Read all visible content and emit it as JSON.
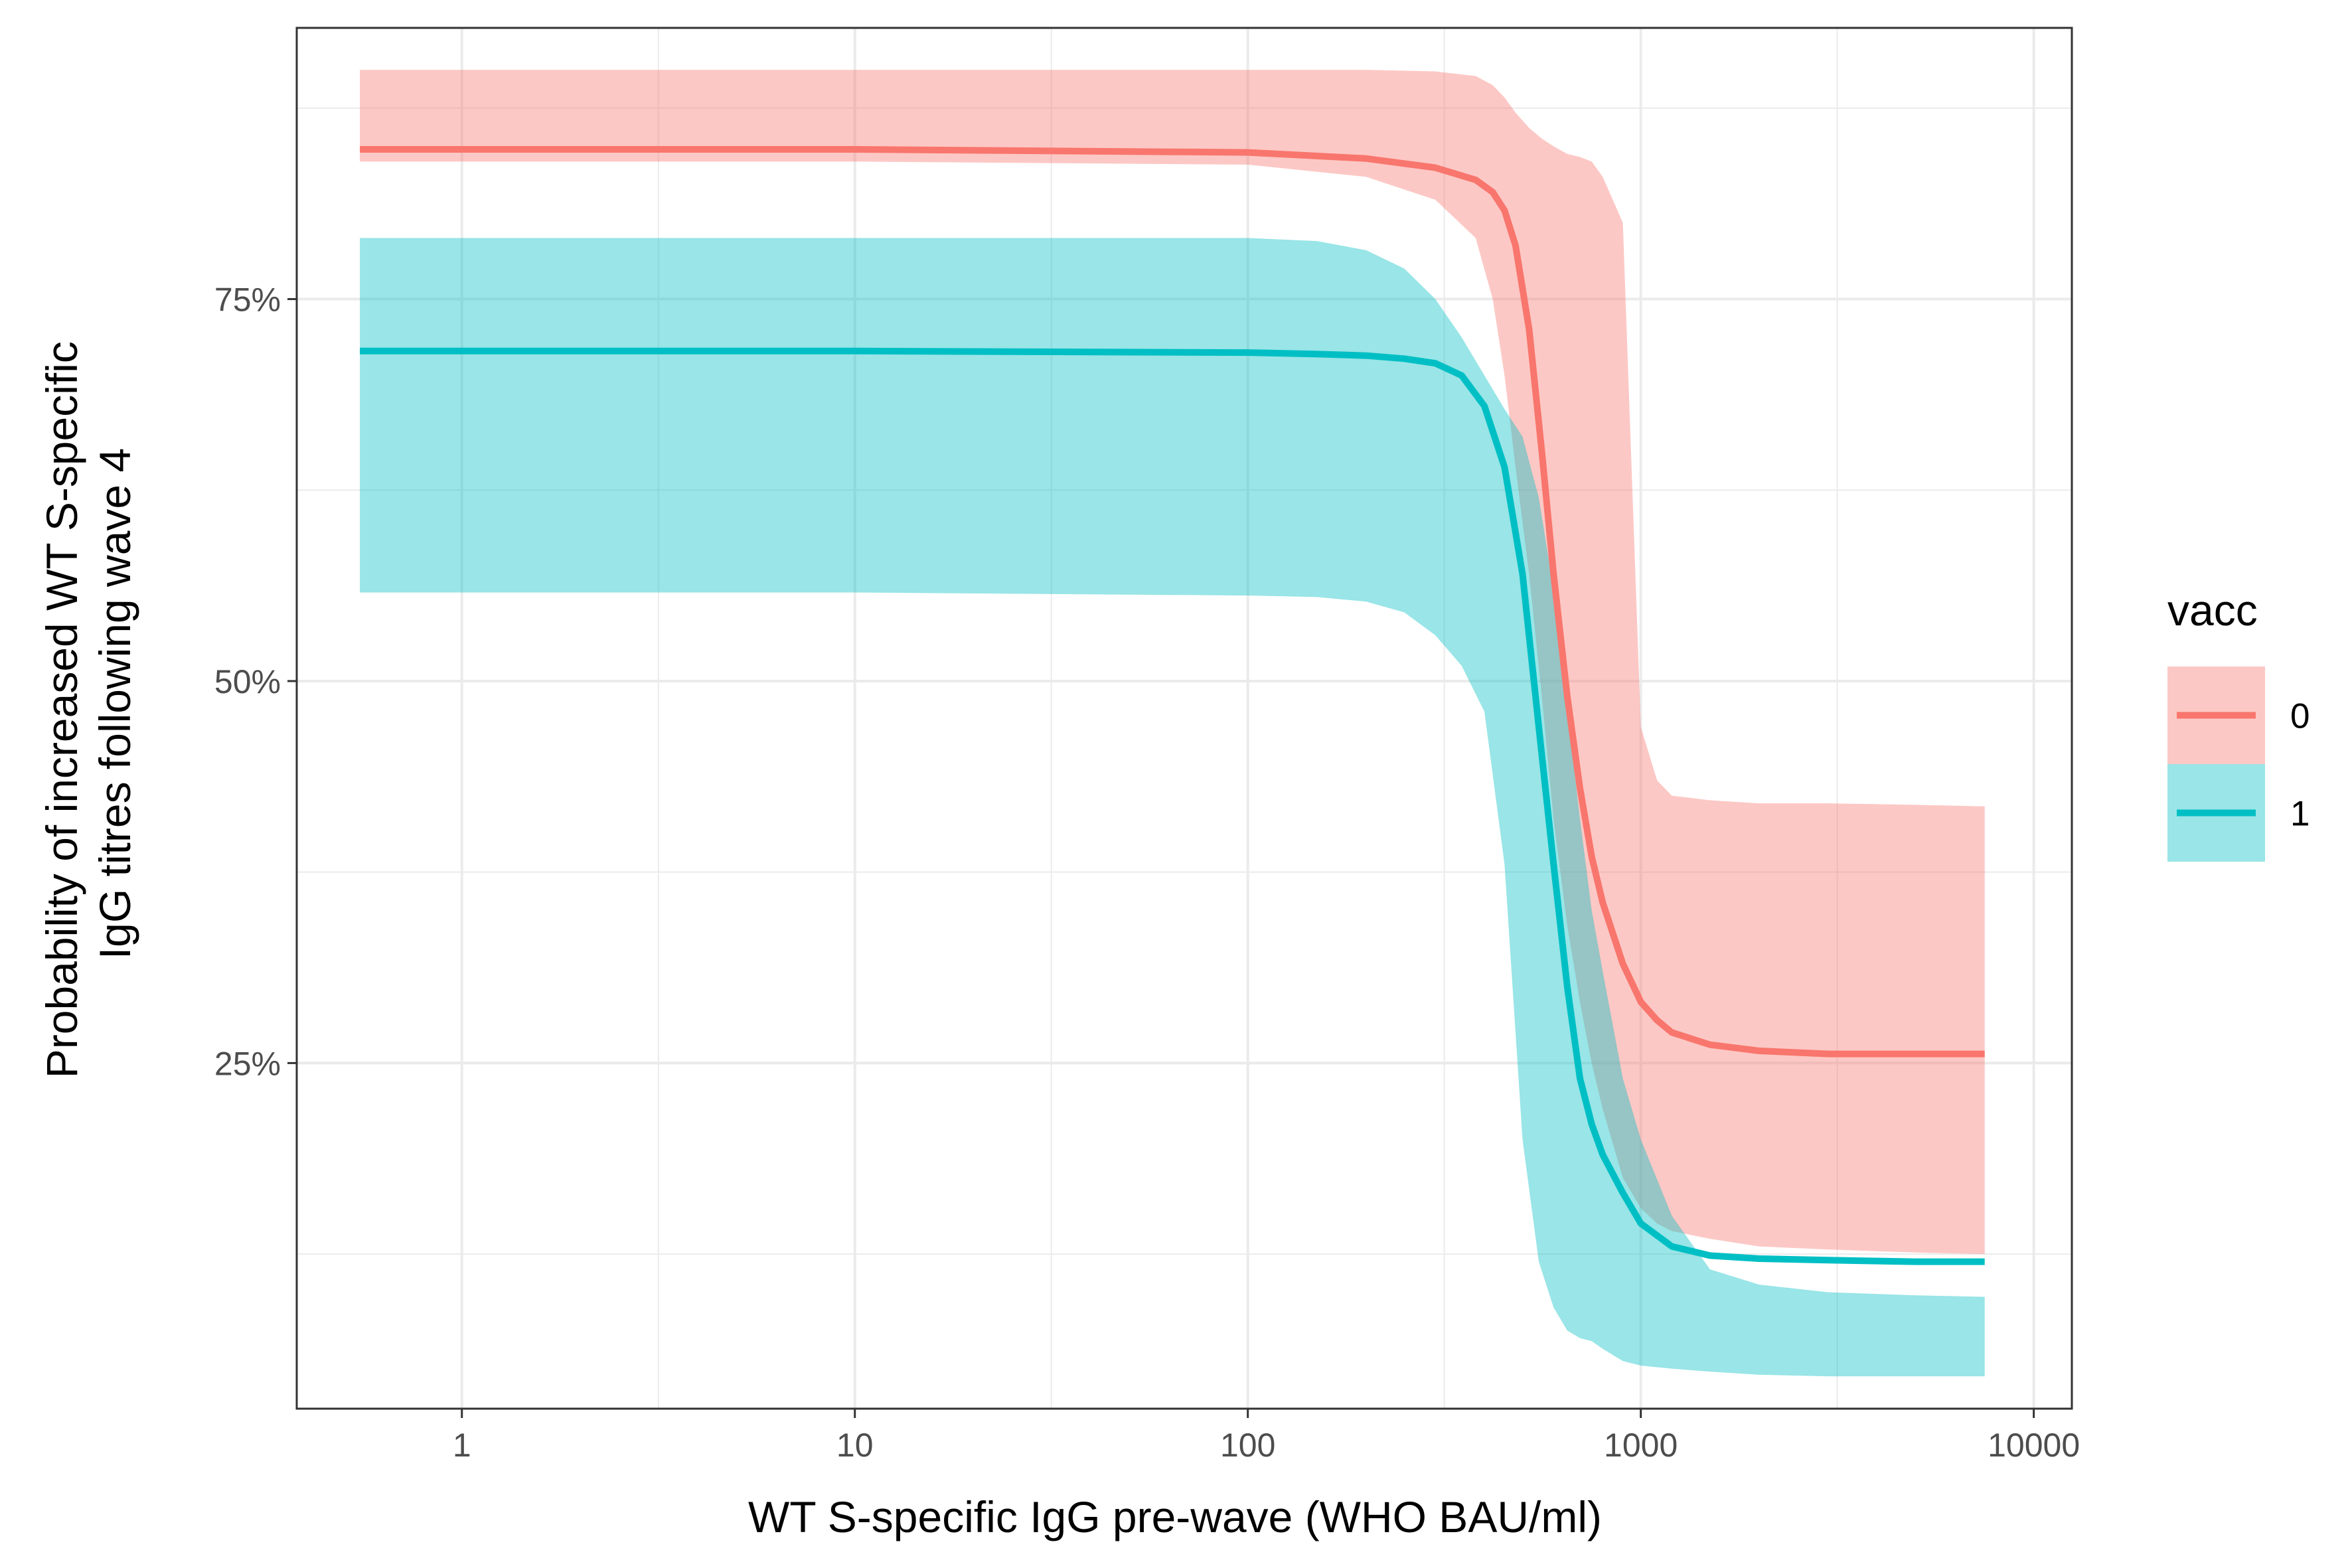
{
  "chart_data": {
    "type": "line",
    "title": "",
    "xlabel": "WT S-specific IgG pre-wave (WHO BAU/ml)",
    "ylabel_lines": [
      "Probability of increased WT S-specific",
      "IgG titres following wave 4"
    ],
    "x_scale": "log10",
    "xlim": [
      0.38,
      12500
    ],
    "ylim": [
      0.0238,
      0.9275
    ],
    "x_ticks": [
      1,
      10,
      100,
      1000,
      10000
    ],
    "x_tick_labels": [
      "1",
      "10",
      "100",
      "1000",
      "10000"
    ],
    "y_ticks": [
      0.25,
      0.5,
      0.75
    ],
    "y_tick_labels": [
      "25%",
      "50%",
      "75%"
    ],
    "grid": true,
    "legend": {
      "title": "vacc",
      "position": "right",
      "entries": [
        {
          "label": "0",
          "color": "#F8766D"
        },
        {
          "label": "1",
          "color": "#00BFC4"
        }
      ]
    },
    "series": [
      {
        "name": "0",
        "color": "#F8766D",
        "x": [
          0.55,
          10,
          100,
          200,
          300,
          380,
          420,
          450,
          480,
          520,
          560,
          600,
          650,
          700,
          750,
          800,
          900,
          1000,
          1100,
          1200,
          1500,
          2000,
          3000,
          5000,
          7500
        ],
        "y": [
          0.848,
          0.848,
          0.846,
          0.842,
          0.836,
          0.828,
          0.82,
          0.808,
          0.785,
          0.73,
          0.65,
          0.57,
          0.49,
          0.43,
          0.385,
          0.355,
          0.315,
          0.29,
          0.278,
          0.27,
          0.262,
          0.258,
          0.256,
          0.256,
          0.256
        ],
        "lower": [
          0.84,
          0.84,
          0.838,
          0.83,
          0.815,
          0.79,
          0.75,
          0.7,
          0.64,
          0.57,
          0.49,
          0.41,
          0.34,
          0.29,
          0.25,
          0.22,
          0.175,
          0.155,
          0.145,
          0.14,
          0.135,
          0.13,
          0.128,
          0.126,
          0.125
        ],
        "upper": [
          0.9,
          0.9,
          0.9,
          0.9,
          0.899,
          0.896,
          0.89,
          0.882,
          0.872,
          0.862,
          0.855,
          0.85,
          0.845,
          0.843,
          0.84,
          0.83,
          0.8,
          0.47,
          0.435,
          0.425,
          0.422,
          0.42,
          0.42,
          0.419,
          0.418
        ]
      },
      {
        "name": "1",
        "color": "#00BFC4",
        "x": [
          0.55,
          10,
          100,
          150,
          200,
          250,
          300,
          350,
          400,
          450,
          500,
          550,
          600,
          650,
          700,
          750,
          800,
          900,
          1000,
          1200,
          1500,
          2000,
          3000,
          5000,
          7500
        ],
        "y": [
          0.716,
          0.716,
          0.715,
          0.714,
          0.713,
          0.711,
          0.708,
          0.7,
          0.68,
          0.64,
          0.57,
          0.47,
          0.38,
          0.3,
          0.24,
          0.21,
          0.19,
          0.165,
          0.145,
          0.13,
          0.124,
          0.122,
          0.121,
          0.12,
          0.12
        ],
        "lower": [
          0.558,
          0.558,
          0.556,
          0.555,
          0.552,
          0.545,
          0.53,
          0.51,
          0.48,
          0.38,
          0.2,
          0.12,
          0.09,
          0.075,
          0.07,
          0.068,
          0.063,
          0.055,
          0.052,
          0.05,
          0.048,
          0.046,
          0.045,
          0.045,
          0.045
        ],
        "upper": [
          0.79,
          0.79,
          0.79,
          0.788,
          0.782,
          0.77,
          0.75,
          0.725,
          0.7,
          0.678,
          0.66,
          0.62,
          0.56,
          0.48,
          0.41,
          0.35,
          0.31,
          0.24,
          0.2,
          0.15,
          0.115,
          0.105,
          0.1,
          0.098,
          0.097
        ]
      }
    ]
  }
}
